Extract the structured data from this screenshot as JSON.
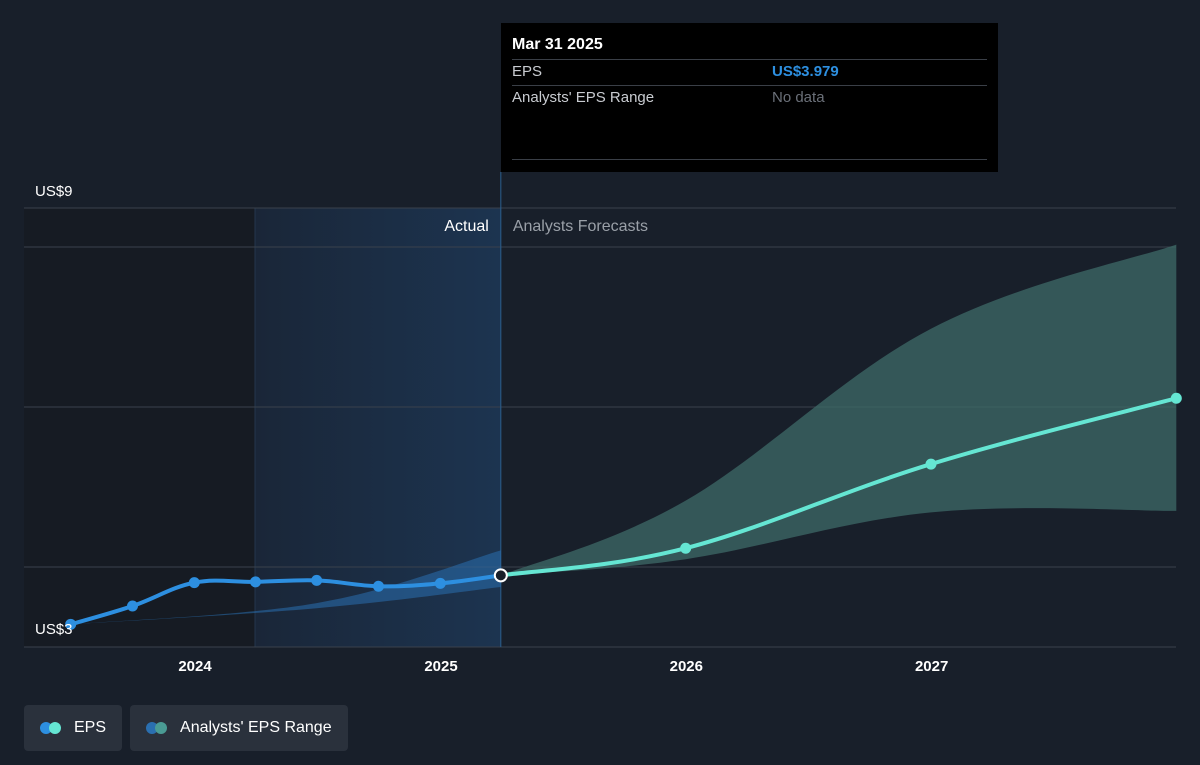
{
  "colors": {
    "background": "#181f2a",
    "actual_line": "#2d8fe0",
    "forecast_line": "#65e6d3",
    "forecast_range": "#3d6b68",
    "actual_range": "#2a6fb0",
    "grid": "#3a414c",
    "tooltip_bg": "#000000",
    "tooltip_accent": "#2d8fe0"
  },
  "tooltip": {
    "date": "Mar 31 2025",
    "rows": [
      {
        "label": "EPS",
        "value": "US$3.979"
      },
      {
        "label": "Analysts' EPS Range",
        "value": "No data"
      }
    ]
  },
  "legend": [
    {
      "label": "EPS",
      "icon": "eps-legend-dots",
      "colors": [
        "#2d8fe0",
        "#65e6d3"
      ]
    },
    {
      "label": "Analysts' EPS Range",
      "icon": "range-legend-dots",
      "colors": [
        "#2a6fb0",
        "#4a9b94"
      ]
    }
  ],
  "chart_data": {
    "type": "line",
    "ylim": [
      3,
      9
    ],
    "y_tick_labels": {
      "top": "US$9",
      "bottom": "US$3"
    },
    "x_ticks": [
      "2024",
      "2025",
      "2026",
      "2027"
    ],
    "x_tick_dates": [
      "2024-01-01",
      "2025-01-01",
      "2026-01-01",
      "2027-01-01"
    ],
    "divider_date": "2025-03-31",
    "section_labels": {
      "actual": "Actual",
      "forecast": "Analysts Forecasts"
    },
    "grid": true,
    "series": [
      {
        "name": "EPS",
        "kind": "actual",
        "points": [
          {
            "x": "2023-06-30",
            "y": 3.31
          },
          {
            "x": "2023-09-30",
            "y": 3.56
          },
          {
            "x": "2023-12-31",
            "y": 3.88
          },
          {
            "x": "2024-03-31",
            "y": 3.89
          },
          {
            "x": "2024-06-30",
            "y": 3.91
          },
          {
            "x": "2024-09-30",
            "y": 3.83
          },
          {
            "x": "2024-12-31",
            "y": 3.87
          },
          {
            "x": "2025-03-31",
            "y": 3.979
          }
        ]
      },
      {
        "name": "EPS",
        "kind": "forecast",
        "points": [
          {
            "x": "2025-03-31",
            "y": 3.979
          },
          {
            "x": "2025-12-31",
            "y": 4.35
          },
          {
            "x": "2026-12-31",
            "y": 5.5
          },
          {
            "x": "2027-12-31",
            "y": 6.4
          }
        ]
      }
    ],
    "ranges": [
      {
        "name": "Analysts' EPS Range",
        "kind": "actual",
        "upper": [
          {
            "x": "2023-06-30",
            "y": 3.31
          },
          {
            "x": "2024-06-30",
            "y": 3.6
          },
          {
            "x": "2025-03-31",
            "y": 4.32
          }
        ],
        "lower": [
          {
            "x": "2023-06-30",
            "y": 3.31
          },
          {
            "x": "2024-06-30",
            "y": 3.53
          },
          {
            "x": "2025-03-31",
            "y": 3.82
          }
        ]
      },
      {
        "name": "Analysts' EPS Range",
        "kind": "forecast",
        "upper": [
          {
            "x": "2025-03-31",
            "y": 3.979
          },
          {
            "x": "2025-12-31",
            "y": 5.0
          },
          {
            "x": "2026-12-31",
            "y": 7.35
          },
          {
            "x": "2027-12-31",
            "y": 8.5
          }
        ],
        "lower": [
          {
            "x": "2025-03-31",
            "y": 3.979
          },
          {
            "x": "2025-12-31",
            "y": 4.2
          },
          {
            "x": "2026-12-31",
            "y": 4.84
          },
          {
            "x": "2027-12-31",
            "y": 4.86
          }
        ]
      }
    ]
  }
}
